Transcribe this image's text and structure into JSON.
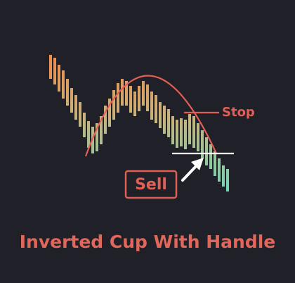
{
  "labels": {
    "stop": "Stop",
    "sell": "Sell"
  },
  "title": "Inverted Cup With Handle"
}
